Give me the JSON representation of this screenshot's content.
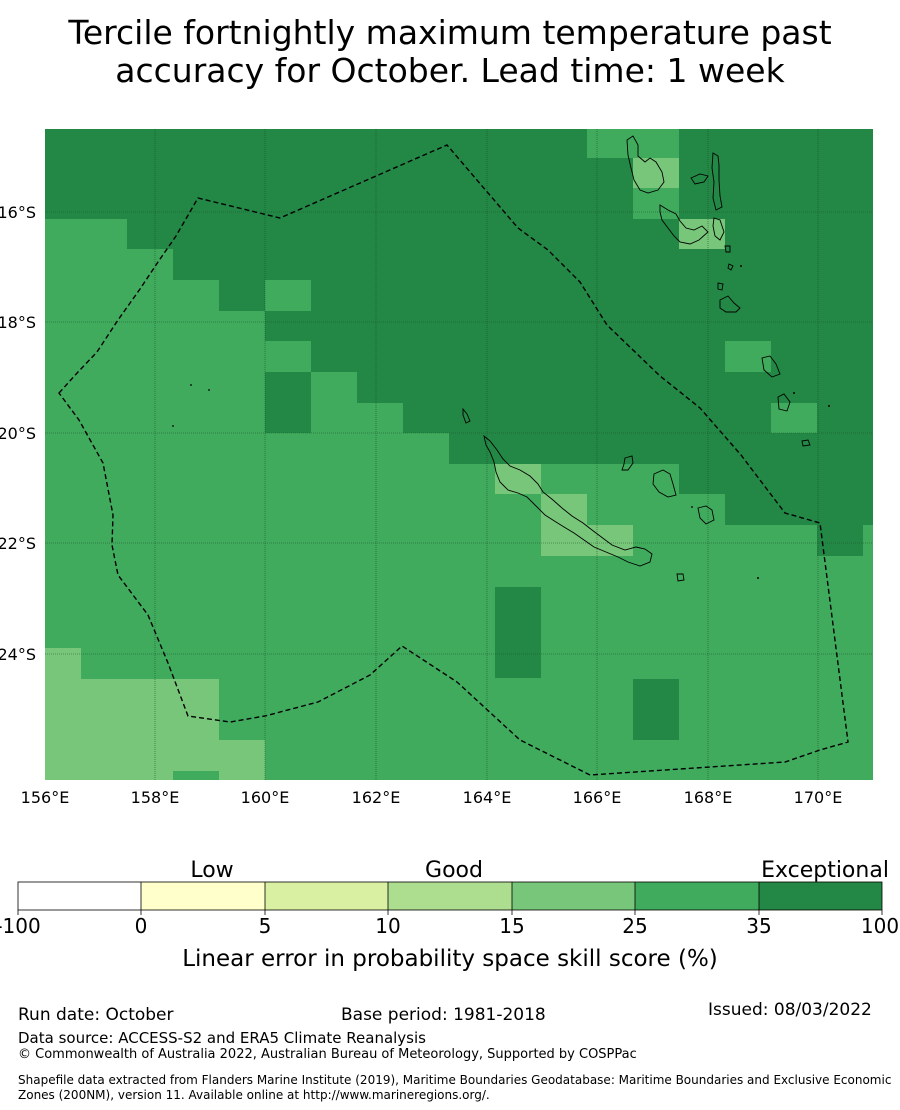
{
  "title": {
    "line1": "Tercile fortnightly maximum temperature past",
    "line2": "accuracy for October. Lead time: 1 week"
  },
  "map": {
    "lon_range": [
      156,
      171
    ],
    "lat_range": [
      -26.2,
      -14.4
    ],
    "grid_step_deg": 0.833,
    "colors": {
      "exceptional": "#238845",
      "c25_35": "#41ab5d",
      "c15_25": "#78c679",
      "c10_15": "#addd8e",
      "c5_10": "#d9f0a3",
      "c0_5": "#ffffcc",
      "neg": "#ffffff"
    },
    "lat_labels": [
      "16°S",
      "18°S",
      "20°S",
      "22°S",
      "24°S"
    ],
    "lat_values": [
      -16,
      -18,
      -20,
      -22,
      -24
    ],
    "lon_labels": [
      "156°E",
      "158°E",
      "160°E",
      "162°E",
      "164°E",
      "166°E",
      "168°E",
      "170°E"
    ],
    "lon_values": [
      156,
      158,
      160,
      162,
      164,
      166,
      168,
      170
    ]
  },
  "colorbar": {
    "categories": [
      "Low",
      "Good",
      "Exceptional"
    ],
    "ticks": [
      "-100",
      "0",
      "5",
      "10",
      "15",
      "25",
      "35",
      "100"
    ],
    "colors": [
      "#ffffff",
      "#ffffcc",
      "#d9f0a3",
      "#addd8e",
      "#78c679",
      "#41ab5d",
      "#238845"
    ],
    "label": "Linear error in probability space skill score (%)"
  },
  "footer": {
    "run_date": "Run date: October",
    "base_period": "Base period: 1981-2018",
    "issued": "Issued: 08/03/2022",
    "data_source": "Data source: ACCESS-S2 and ERA5 Climate Reanalysis",
    "copyright": "© Commonwealth of Australia 2022, Australian Bureau of Meteorology, Supported by COSPPac",
    "shapefile1": "Shapefile data extracted from Flanders Marine Institute (2019), Maritime Boundaries Geodatabase: Maritime Boundaries and Exclusive Economic",
    "shapefile2": "Zones (200NM), version 11. Available online at http://www.marineregions.org/."
  }
}
